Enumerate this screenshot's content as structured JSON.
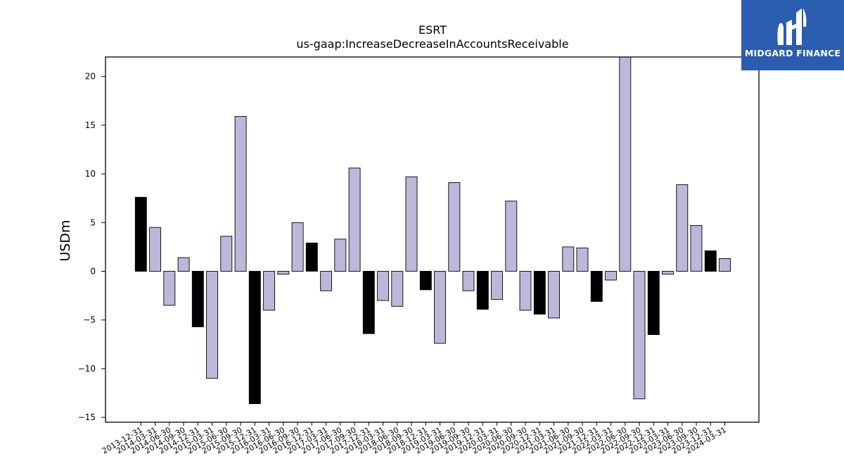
{
  "brand": {
    "name": "MIDGARD FINANCE",
    "icon": "midgard-logo-icon",
    "color": "#2a5db0"
  },
  "chart_data": {
    "type": "bar",
    "title": "ESRT",
    "subtitle": "us-gaap:IncreaseDecreaseInAccountsReceivable",
    "ylabel": "USDm",
    "xlabel": "",
    "ylim": [
      -15.5,
      22
    ],
    "yticks": [
      -15,
      -10,
      -5,
      0,
      5,
      10,
      15,
      20
    ],
    "grid": false,
    "colors": {
      "q4": "#000000",
      "other": "#bcb8da",
      "edge": "#000000"
    },
    "categories": [
      "2013-12-31",
      "2014-03-31",
      "2014-06-30",
      "2014-09-30",
      "2014-12-31",
      "2015-03-31",
      "2015-06-30",
      "2015-09-30",
      "2015-12-31",
      "2016-03-31",
      "2016-06-30",
      "2016-09-30",
      "2016-12-31",
      "2017-03-31",
      "2017-06-30",
      "2017-09-30",
      "2017-12-31",
      "2018-03-31",
      "2018-06-30",
      "2018-09-30",
      "2018-12-31",
      "2019-03-31",
      "2019-06-30",
      "2019-09-30",
      "2019-12-31",
      "2020-03-31",
      "2020-06-30",
      "2020-09-30",
      "2020-12-31",
      "2021-03-31",
      "2021-06-30",
      "2021-09-30",
      "2021-12-31",
      "2022-03-31",
      "2022-06-30",
      "2022-09-30",
      "2022-12-31",
      "2023-03-31",
      "2023-06-30",
      "2023-09-30",
      "2023-12-31",
      "2024-03-31"
    ],
    "values": [
      7.6,
      4.5,
      -3.5,
      1.4,
      -5.7,
      -11.0,
      3.6,
      15.9,
      -13.6,
      -4.0,
      -0.3,
      5.0,
      2.9,
      -2.0,
      3.3,
      10.6,
      -6.4,
      -3.0,
      -3.6,
      9.7,
      -1.9,
      -7.4,
      9.1,
      -2.0,
      -3.9,
      -2.9,
      7.2,
      -4.0,
      -4.4,
      -4.8,
      2.5,
      2.4,
      -3.1,
      -0.9,
      22.5,
      -13.1,
      -6.5,
      -0.3,
      8.9,
      4.7,
      2.1,
      1.3
    ]
  }
}
